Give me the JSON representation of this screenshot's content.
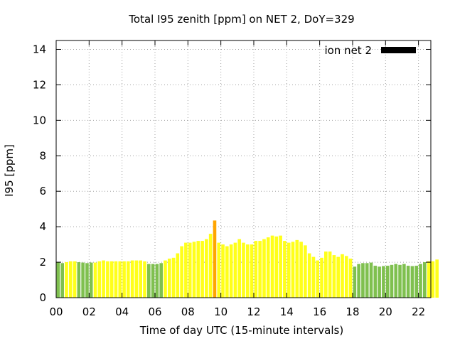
{
  "chart_data": {
    "type": "bar",
    "title": "Total I95 zenith [ppm] on NET 2, DoY=329",
    "xlabel": "Time of day UTC (15-minute intervals)",
    "ylabel": "I95 [ppm]",
    "ylim": [
      0,
      14.5
    ],
    "xlim": [
      0,
      22.75
    ],
    "x_tick_labels": [
      "00",
      "02",
      "04",
      "06",
      "08",
      "10",
      "12",
      "14",
      "16",
      "18",
      "20",
      "22"
    ],
    "y_tick_labels": [
      "0",
      "2",
      "4",
      "6",
      "8",
      "10",
      "12",
      "14"
    ],
    "grid": true,
    "legend": {
      "label": "ion net 2",
      "placement": "top-right",
      "color": "#000000"
    },
    "interval_hours": 0.25,
    "colors": {
      "low": "#7fc04f",
      "mid": "#ffff1a",
      "high": "#ffa500"
    },
    "series": [
      {
        "values": [
          2.0,
          1.95,
          2.0,
          2.05,
          2.05,
          2.0,
          1.98,
          1.95,
          1.98,
          1.98,
          2.05,
          2.1,
          2.05,
          2.05,
          2.05,
          2.05,
          2.05,
          2.05,
          2.1,
          2.1,
          2.1,
          2.05,
          1.9,
          1.9,
          1.9,
          1.95,
          2.1,
          2.2,
          2.25,
          2.5,
          2.9,
          3.1,
          3.1,
          3.15,
          3.2,
          3.2,
          3.3,
          3.6,
          4.35,
          3.1,
          3.0,
          2.9,
          3.0,
          3.1,
          3.3,
          3.1,
          3.0,
          3.0,
          3.2,
          3.2,
          3.3,
          3.4,
          3.5,
          3.45,
          3.5,
          3.2,
          3.1,
          3.15,
          3.25,
          3.15,
          2.95,
          2.5,
          2.3,
          2.1,
          2.25,
          2.6,
          2.6,
          2.4,
          2.3,
          2.45,
          2.35,
          2.2,
          1.75,
          1.9,
          1.95,
          1.95,
          1.98,
          1.8,
          1.75,
          1.78,
          1.8,
          1.85,
          1.9,
          1.85,
          1.9,
          1.8,
          1.78,
          1.8,
          1.9,
          2.0,
          2.05,
          2.05,
          2.15
        ],
        "levels": [
          "low",
          "low",
          "mid",
          "mid",
          "mid",
          "low",
          "low",
          "low",
          "low",
          "mid",
          "mid",
          "mid",
          "mid",
          "mid",
          "mid",
          "mid",
          "mid",
          "mid",
          "mid",
          "mid",
          "mid",
          "mid",
          "low",
          "low",
          "low",
          "low",
          "mid",
          "mid",
          "mid",
          "mid",
          "mid",
          "mid",
          "mid",
          "mid",
          "mid",
          "mid",
          "mid",
          "mid",
          "high",
          "mid",
          "mid",
          "mid",
          "mid",
          "mid",
          "mid",
          "mid",
          "mid",
          "mid",
          "mid",
          "mid",
          "mid",
          "mid",
          "mid",
          "mid",
          "mid",
          "mid",
          "mid",
          "mid",
          "mid",
          "mid",
          "mid",
          "mid",
          "mid",
          "mid",
          "mid",
          "mid",
          "mid",
          "mid",
          "mid",
          "mid",
          "mid",
          "mid",
          "low",
          "low",
          "low",
          "low",
          "low",
          "low",
          "low",
          "low",
          "low",
          "low",
          "low",
          "low",
          "low",
          "low",
          "low",
          "low",
          "low",
          "low",
          "mid",
          "mid",
          "mid"
        ]
      }
    ]
  }
}
